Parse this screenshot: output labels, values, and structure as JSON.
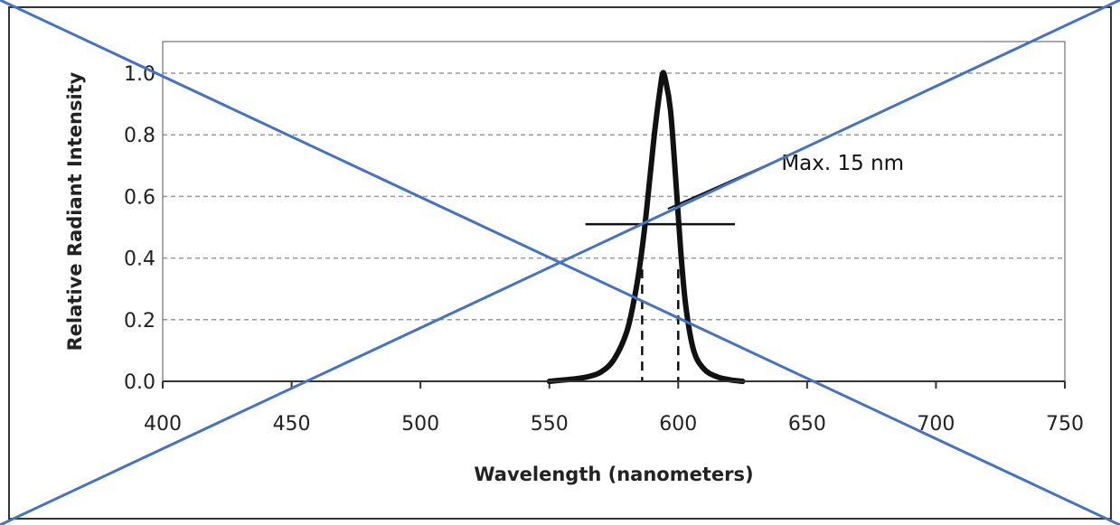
{
  "chart_data": {
    "type": "line",
    "title": "",
    "xlabel": "Wavelength (nanometers)",
    "ylabel": "Relative Radiant Intensity",
    "xlim": [
      400,
      750
    ],
    "ylim": [
      0,
      1.0
    ],
    "x_ticks": [
      "400",
      "450",
      "500",
      "550",
      "600",
      "650",
      "700",
      "750"
    ],
    "y_ticks": [
      "0.0",
      "0.2",
      "0.4",
      "0.6",
      "0.8",
      "1.0"
    ],
    "grid": "horizontal dashed",
    "legend": "none",
    "series": [
      {
        "color": "#111111",
        "points": [
          [
            550,
            0.0
          ],
          [
            555,
            0.004
          ],
          [
            560,
            0.008
          ],
          [
            565,
            0.015
          ],
          [
            570,
            0.03
          ],
          [
            575,
            0.07
          ],
          [
            580,
            0.16
          ],
          [
            583,
            0.27
          ],
          [
            585,
            0.37
          ],
          [
            587,
            0.5
          ],
          [
            589,
            0.66
          ],
          [
            591,
            0.82
          ],
          [
            593,
            0.95
          ],
          [
            594,
            1.0
          ],
          [
            595,
            0.98
          ],
          [
            597,
            0.88
          ],
          [
            599,
            0.66
          ],
          [
            601,
            0.42
          ],
          [
            603,
            0.24
          ],
          [
            606,
            0.1
          ],
          [
            610,
            0.04
          ],
          [
            615,
            0.015
          ],
          [
            620,
            0.005
          ],
          [
            625,
            0.0
          ]
        ]
      }
    ],
    "half_max_line": {
      "y": 0.51,
      "x_start": 564,
      "x_end": 622
    },
    "fwhm_markers": [
      586,
      600
    ],
    "annotation": {
      "text": "Max. 15 nm",
      "text_x": 640,
      "text_y": 0.71,
      "pointer_from": [
        640,
        0.72
      ],
      "pointer_to": [
        596,
        0.56
      ]
    },
    "overlay_cross_color": "#4472c4"
  }
}
